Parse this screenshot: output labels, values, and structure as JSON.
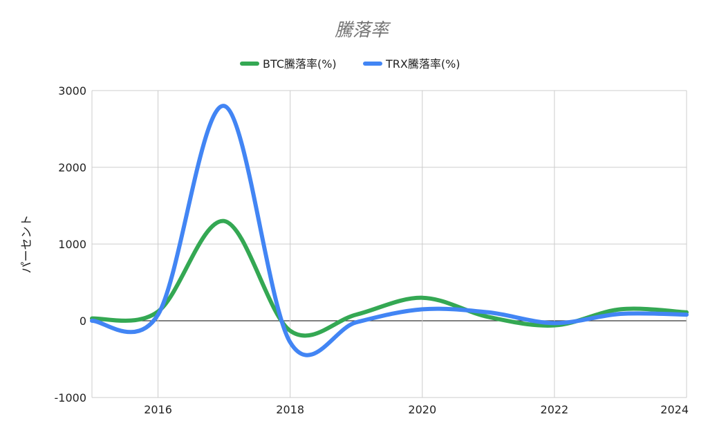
{
  "chart_data": {
    "type": "line",
    "title": "騰落率",
    "xlabel": "",
    "ylabel": "パーセント",
    "xlim": [
      2015,
      2024
    ],
    "ylim": [
      -1000,
      3000
    ],
    "x_ticks": [
      "2016",
      "2018",
      "2020",
      "2022",
      "2024"
    ],
    "y_ticks": [
      "-1000",
      "0",
      "1000",
      "2000",
      "3000"
    ],
    "grid": true,
    "legend_position": "top",
    "series": [
      {
        "name": "BTC騰落率(%)",
        "color": "#34a853",
        "points": [
          [
            2015,
            30
          ],
          [
            2016,
            120
          ],
          [
            2017,
            1300
          ],
          [
            2018,
            -130
          ],
          [
            2019,
            80
          ],
          [
            2020,
            300
          ],
          [
            2021,
            50
          ],
          [
            2022,
            -60
          ],
          [
            2023,
            150
          ],
          [
            2024,
            110
          ]
        ]
      },
      {
        "name": "TRX騰落率(%)",
        "color": "#4285f4",
        "points": [
          [
            2015,
            0
          ],
          [
            2016,
            80
          ],
          [
            2017,
            2800
          ],
          [
            2018,
            -280
          ],
          [
            2019,
            -20
          ],
          [
            2020,
            150
          ],
          [
            2021,
            110
          ],
          [
            2022,
            -30
          ],
          [
            2023,
            90
          ],
          [
            2024,
            80
          ]
        ]
      }
    ]
  }
}
